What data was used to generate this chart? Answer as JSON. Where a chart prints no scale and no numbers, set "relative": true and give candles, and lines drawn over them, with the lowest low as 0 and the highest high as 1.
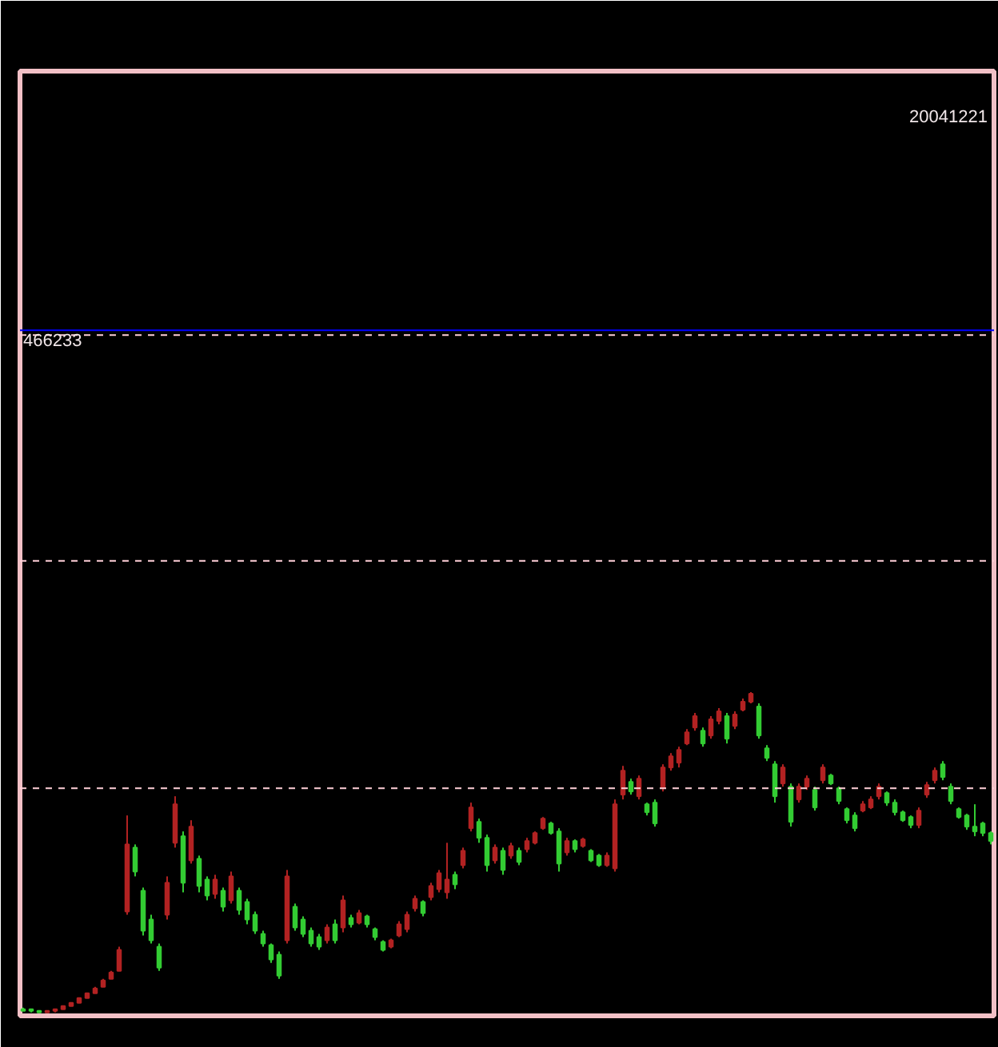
{
  "chart_data": {
    "type": "candlestick",
    "relative": true,
    "categories": [
      null,
      null,
      null,
      null,
      null,
      null,
      null,
      null,
      null,
      null,
      null,
      null,
      null,
      null,
      null,
      null,
      null,
      null,
      null,
      null,
      null,
      null,
      null,
      null,
      null,
      null,
      null,
      null,
      null,
      null,
      null,
      null,
      null,
      null,
      null,
      null,
      null,
      null,
      null,
      null,
      null,
      null,
      null,
      null,
      null,
      null,
      null,
      null,
      null,
      null,
      null,
      null,
      null,
      null,
      null,
      null,
      null,
      null,
      null,
      null,
      null,
      null,
      null,
      null,
      null,
      null,
      null,
      null,
      null,
      null,
      null,
      null,
      null,
      null,
      null,
      null,
      null,
      null,
      null,
      null,
      null,
      null,
      null,
      null,
      null,
      null,
      null,
      null,
      null,
      null,
      null,
      null,
      null,
      null,
      null,
      null,
      null,
      null,
      null,
      null,
      null,
      null,
      null,
      null,
      null,
      null,
      null,
      null,
      null,
      null,
      null,
      null,
      null,
      null,
      null,
      null,
      null,
      null,
      null,
      null,
      null,
      null
    ],
    "ohlc": [
      [
        0.01,
        0.015,
        0.005,
        0.005
      ],
      [
        0.01,
        0.01,
        0,
        0.005
      ],
      [
        0.005,
        0.005,
        0,
        0
      ],
      [
        0,
        0.005,
        0,
        0.005
      ],
      [
        0.005,
        0.01,
        0,
        0.01
      ],
      [
        0.01,
        0.02,
        0.01,
        0.02
      ],
      [
        0.02,
        0.03,
        0.02,
        0.03
      ],
      [
        0.03,
        0.045,
        0.03,
        0.045
      ],
      [
        0.045,
        0.06,
        0.045,
        0.06
      ],
      [
        0.06,
        0.08,
        0.06,
        0.075
      ],
      [
        0.08,
        0.105,
        0.08,
        0.1
      ],
      [
        0.105,
        0.13,
        0.105,
        0.125
      ],
      [
        0.13,
        0.205,
        0.13,
        0.195
      ],
      [
        0.315,
        0.615,
        0.305,
        0.525
      ],
      [
        0.515,
        0.525,
        0.425,
        0.44
      ],
      [
        0.38,
        0.39,
        0.24,
        0.255
      ],
      [
        0.29,
        0.305,
        0.215,
        0.225
      ],
      [
        0.205,
        0.215,
        0.13,
        0.14
      ],
      [
        0.305,
        0.425,
        0.29,
        0.405
      ],
      [
        0.53,
        0.675,
        0.515,
        0.65
      ],
      [
        0.55,
        0.565,
        0.375,
        0.405
      ],
      [
        0.475,
        0.6,
        0.465,
        0.58
      ],
      [
        0.48,
        0.49,
        0.375,
        0.395
      ],
      [
        0.415,
        0.425,
        0.35,
        0.365
      ],
      [
        0.37,
        0.43,
        0.355,
        0.415
      ],
      [
        0.38,
        0.39,
        0.315,
        0.33
      ],
      [
        0.35,
        0.44,
        0.34,
        0.425
      ],
      [
        0.38,
        0.39,
        0.305,
        0.32
      ],
      [
        0.345,
        0.355,
        0.275,
        0.29
      ],
      [
        0.305,
        0.315,
        0.245,
        0.255
      ],
      [
        0.245,
        0.255,
        0.205,
        0.215
      ],
      [
        0.21,
        0.215,
        0.155,
        0.165
      ],
      [
        0.18,
        0.19,
        0.105,
        0.115
      ],
      [
        0.225,
        0.445,
        0.215,
        0.425
      ],
      [
        0.33,
        0.34,
        0.255,
        0.265
      ],
      [
        0.29,
        0.3,
        0.235,
        0.245
      ],
      [
        0.255,
        0.265,
        0.205,
        0.215
      ],
      [
        0.235,
        0.245,
        0.195,
        0.205
      ],
      [
        0.225,
        0.275,
        0.215,
        0.265
      ],
      [
        0.275,
        0.29,
        0.215,
        0.225
      ],
      [
        0.265,
        0.365,
        0.25,
        0.35
      ],
      [
        0.295,
        0.305,
        0.265,
        0.275
      ],
      [
        0.28,
        0.32,
        0.275,
        0.31
      ],
      [
        0.3,
        0.305,
        0.265,
        0.275
      ],
      [
        0.26,
        0.265,
        0.225,
        0.235
      ],
      [
        0.22,
        0.225,
        0.19,
        0.195
      ],
      [
        0.205,
        0.23,
        0.2,
        0.225
      ],
      [
        0.24,
        0.285,
        0.235,
        0.275
      ],
      [
        0.26,
        0.315,
        0.25,
        0.305
      ],
      [
        0.325,
        0.365,
        0.315,
        0.355
      ],
      [
        0.345,
        0.35,
        0.3,
        0.31
      ],
      [
        0.36,
        0.405,
        0.35,
        0.395
      ],
      [
        0.385,
        0.445,
        0.375,
        0.435
      ],
      [
        0.375,
        0.53,
        0.355,
        0.415
      ],
      [
        0.43,
        0.44,
        0.385,
        0.4
      ],
      [
        0.46,
        0.515,
        0.45,
        0.505
      ],
      [
        0.575,
        0.655,
        0.565,
        0.64
      ],
      [
        0.595,
        0.605,
        0.53,
        0.545
      ],
      [
        0.545,
        0.555,
        0.44,
        0.46
      ],
      [
        0.475,
        0.525,
        0.465,
        0.515
      ],
      [
        0.505,
        0.515,
        0.43,
        0.445
      ],
      [
        0.49,
        0.53,
        0.48,
        0.52
      ],
      [
        0.505,
        0.515,
        0.46,
        0.47
      ],
      [
        0.51,
        0.545,
        0.5,
        0.535
      ],
      [
        0.53,
        0.565,
        0.525,
        0.56
      ],
      [
        0.575,
        0.61,
        0.57,
        0.605
      ],
      [
        0.59,
        0.595,
        0.555,
        0.56
      ],
      [
        0.565,
        0.575,
        0.44,
        0.465
      ],
      [
        0.5,
        0.545,
        0.49,
        0.535
      ],
      [
        0.535,
        0.54,
        0.5,
        0.51
      ],
      [
        0.52,
        0.545,
        0.515,
        0.54
      ],
      [
        0.505,
        0.51,
        0.47,
        0.475
      ],
      [
        0.49,
        0.495,
        0.455,
        0.46
      ],
      [
        0.46,
        0.5,
        0.455,
        0.49
      ],
      [
        0.45,
        0.665,
        0.44,
        0.65
      ],
      [
        0.68,
        0.77,
        0.665,
        0.755
      ],
      [
        0.72,
        0.73,
        0.68,
        0.69
      ],
      [
        0.675,
        0.74,
        0.665,
        0.73
      ],
      [
        0.65,
        0.655,
        0.615,
        0.625
      ],
      [
        0.655,
        0.665,
        0.58,
        0.59
      ],
      [
        0.7,
        0.775,
        0.69,
        0.765
      ],
      [
        0.765,
        0.81,
        0.755,
        0.8
      ],
      [
        0.78,
        0.83,
        0.765,
        0.82
      ],
      [
        0.84,
        0.885,
        0.835,
        0.875
      ],
      [
        0.89,
        0.935,
        0.88,
        0.925
      ],
      [
        0.88,
        0.89,
        0.83,
        0.84
      ],
      [
        0.865,
        0.925,
        0.855,
        0.915
      ],
      [
        0.91,
        0.95,
        0.9,
        0.94
      ],
      [
        0.925,
        0.935,
        0.84,
        0.855
      ],
      [
        0.895,
        0.94,
        0.885,
        0.93
      ],
      [
        0.945,
        0.98,
        0.94,
        0.97
      ],
      [
        0.97,
        1,
        0.965,
        0.995
      ],
      [
        0.955,
        0.965,
        0.855,
        0.865
      ],
      [
        0.825,
        0.835,
        0.785,
        0.795
      ],
      [
        0.775,
        0.785,
        0.655,
        0.675
      ],
      [
        0.715,
        0.775,
        0.705,
        0.765
      ],
      [
        0.705,
        0.715,
        0.58,
        0.595
      ],
      [
        0.665,
        0.715,
        0.655,
        0.705
      ],
      [
        0.705,
        0.74,
        0.695,
        0.73
      ],
      [
        0.695,
        0.705,
        0.63,
        0.64
      ],
      [
        0.725,
        0.775,
        0.715,
        0.765
      ],
      [
        0.74,
        0.745,
        0.71,
        0.715
      ],
      [
        0.7,
        0.705,
        0.65,
        0.66
      ],
      [
        0.635,
        0.64,
        0.59,
        0.6
      ],
      [
        0.615,
        0.625,
        0.565,
        0.575
      ],
      [
        0.63,
        0.66,
        0.625,
        0.65
      ],
      [
        0.64,
        0.675,
        0.635,
        0.665
      ],
      [
        0.675,
        0.715,
        0.665,
        0.705
      ],
      [
        0.685,
        0.69,
        0.645,
        0.655
      ],
      [
        0.655,
        0.665,
        0.615,
        0.625
      ],
      [
        0.625,
        0.63,
        0.595,
        0.6
      ],
      [
        0.61,
        0.615,
        0.575,
        0.585
      ],
      [
        0.585,
        0.64,
        0.575,
        0.63
      ],
      [
        0.68,
        0.72,
        0.67,
        0.71
      ],
      [
        0.725,
        0.765,
        0.715,
        0.755
      ],
      [
        0.775,
        0.785,
        0.725,
        0.735
      ],
      [
        0.705,
        0.715,
        0.65,
        0.66
      ],
      [
        0.635,
        0.64,
        0.605,
        0.61
      ],
      [
        0.615,
        0.62,
        0.57,
        0.58
      ],
      [
        0.58,
        0.65,
        0.55,
        0.565
      ],
      [
        0.59,
        0.595,
        0.55,
        0.56
      ],
      [
        0.56,
        0.565,
        0.525,
        0.535
      ]
    ],
    "colors": [
      "#33cc33",
      "#33cc33",
      "#33cc33",
      "#b22222",
      "#b22222",
      "#b22222",
      "#b22222",
      "#b22222",
      "#b22222",
      "#b22222",
      "#b22222",
      "#b22222",
      "#b22222",
      "#b22222",
      "#33cc33",
      "#33cc33",
      "#33cc33",
      "#33cc33",
      "#b22222",
      "#b22222",
      "#33cc33",
      "#b22222",
      "#33cc33",
      "#33cc33",
      "#b22222",
      "#33cc33",
      "#b22222",
      "#33cc33",
      "#33cc33",
      "#33cc33",
      "#33cc33",
      "#33cc33",
      "#33cc33",
      "#b22222",
      "#33cc33",
      "#33cc33",
      "#33cc33",
      "#33cc33",
      "#b22222",
      "#33cc33",
      "#b22222",
      "#33cc33",
      "#b22222",
      "#33cc33",
      "#33cc33",
      "#33cc33",
      "#b22222",
      "#b22222",
      "#b22222",
      "#b22222",
      "#33cc33",
      "#b22222",
      "#b22222",
      "#b22222",
      "#33cc33",
      "#b22222",
      "#b22222",
      "#33cc33",
      "#33cc33",
      "#b22222",
      "#33cc33",
      "#b22222",
      "#33cc33",
      "#b22222",
      "#b22222",
      "#b22222",
      "#33cc33",
      "#33cc33",
      "#b22222",
      "#33cc33",
      "#b22222",
      "#33cc33",
      "#33cc33",
      "#b22222",
      "#b22222",
      "#b22222",
      "#33cc33",
      "#b22222",
      "#33cc33",
      "#33cc33",
      "#b22222",
      "#b22222",
      "#b22222",
      "#b22222",
      "#b22222",
      "#33cc33",
      "#b22222",
      "#b22222",
      "#33cc33",
      "#b22222",
      "#b22222",
      "#b22222",
      "#33cc33",
      "#33cc33",
      "#33cc33",
      "#b22222",
      "#33cc33",
      "#b22222",
      "#b22222",
      "#33cc33",
      "#b22222",
      "#33cc33",
      "#33cc33",
      "#33cc33",
      "#33cc33",
      "#b22222",
      "#b22222",
      "#b22222",
      "#33cc33",
      "#33cc33",
      "#33cc33",
      "#33cc33",
      "#b22222",
      "#b22222",
      "#b22222",
      "#33cc33",
      "#33cc33",
      "#33cc33",
      "#33cc33",
      "#33cc33",
      "#33cc33",
      "#33cc33"
    ],
    "ref_lines": [
      {
        "axis": "y",
        "value": 2.13,
        "color": "#0000ff",
        "line_style": "solid"
      },
      {
        "axis": "y",
        "value": 2.115,
        "color": "#ffd0d8",
        "line_style": "dashed"
      },
      {
        "axis": "y",
        "value": 1.41,
        "color": "#ffd0d8",
        "line_style": "dashed"
      },
      {
        "axis": "y",
        "value": 0.7,
        "color": "#ffd0d8",
        "line_style": "dashed"
      }
    ],
    "annotations": [
      "20041221",
      "466233"
    ]
  }
}
